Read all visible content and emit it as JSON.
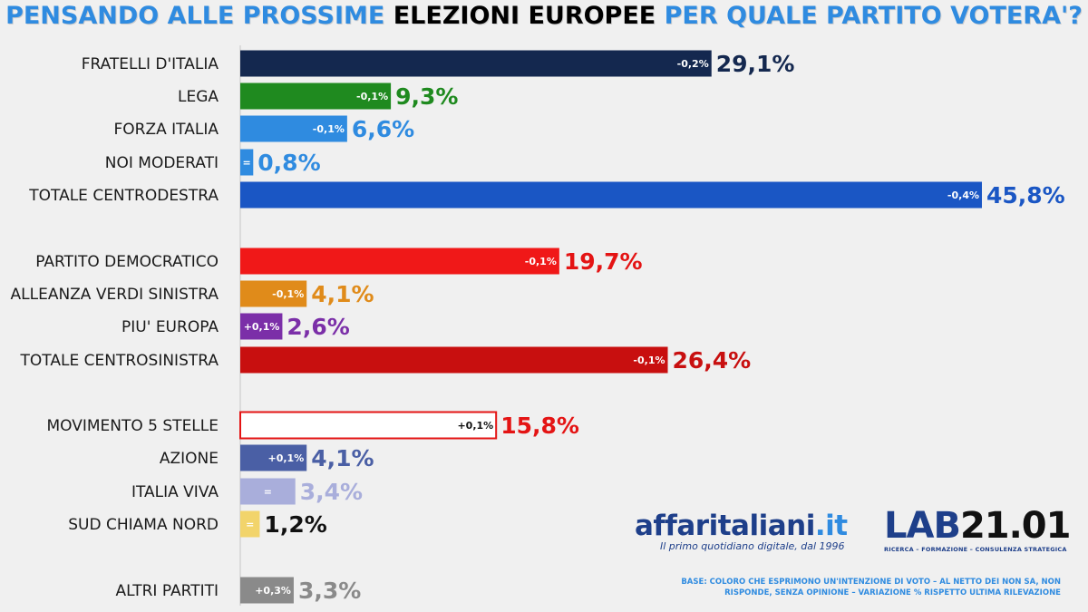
{
  "title": {
    "part1": "PENSANDO ALLE PROSSIME",
    "part2": "ELEZIONI EUROPEE",
    "part3": "PER QUALE PARTITO VOTERA'?"
  },
  "chart_data": {
    "type": "bar",
    "orientation": "horizontal",
    "unit": "%",
    "xlim": [
      0,
      50
    ],
    "grid": false,
    "legend": "none",
    "categories": [
      "FRATELLI D'ITALIA",
      "LEGA",
      "FORZA ITALIA",
      "NOI MODERATI",
      "TOTALE CENTRODESTRA",
      "PARTITO DEMOCRATICO",
      "ALLEANZA VERDI SINISTRA",
      "PIU' EUROPA",
      "TOTALE CENTROSINISTRA",
      "MOVIMENTO 5 STELLE",
      "AZIONE",
      "ITALIA VIVA",
      "SUD CHIAMA NORD",
      "ALTRI PARTITI"
    ],
    "values": [
      29.1,
      9.3,
      6.6,
      0.8,
      45.8,
      19.7,
      4.1,
      2.6,
      26.4,
      15.8,
      4.1,
      3.4,
      1.2,
      3.3
    ],
    "value_labels": [
      "29,1%",
      "9,3%",
      "6,6%",
      "0,8%",
      "45,8%",
      "19,7%",
      "4,1%",
      "2,6%",
      "26,4%",
      "15,8%",
      "4,1%",
      "3,4%",
      "1,2%",
      "3,3%"
    ],
    "variations": [
      "-0,2%",
      "-0,1%",
      "-0,1%",
      "=",
      "-0,4%",
      "-0,1%",
      "-0,1%",
      "+0,1%",
      "-0,1%",
      "+0,1%",
      "+0,1%",
      "=",
      "=",
      "+0,3%"
    ],
    "bar_colors": [
      "#14284f",
      "#1f8a1f",
      "#2f8be0",
      "#2f8be0",
      "#1a56c4",
      "#f01818",
      "#e08b1a",
      "#7b2fa8",
      "#c80f0f",
      "#ffffff",
      "#4a5fa5",
      "#a9aedb",
      "#f2d46b",
      "#8a8a8a"
    ],
    "value_colors": [
      "#14284f",
      "#1f8a1f",
      "#2f8be0",
      "#2f8be0",
      "#1a56c4",
      "#e41414",
      "#e08b1a",
      "#7b2fa8",
      "#c80f0f",
      "#e41414",
      "#4a5fa5",
      "#a9aedb",
      "#111111",
      "#8a8a8a"
    ],
    "bar_outline": [
      null,
      null,
      null,
      null,
      null,
      null,
      null,
      null,
      null,
      "#e41414",
      null,
      null,
      null,
      null
    ]
  },
  "logo": {
    "name_main": "affaritaliani",
    "name_suffix": ".it",
    "tagline": "Il primo quotidiano digitale, dal 1996"
  },
  "lab": {
    "prefix": "LAB",
    "number": "21.01",
    "tagline": "RICERCA – FORMAZIONE – CONSULENZA STRATEGICA"
  },
  "note": "BASE: COLORO CHE ESPRIMONO UN'INTENZIONE DI VOTO – AL NETTO DEI NON SA, NON RISPONDE, SENZA OPINIONE – VARIAZIONE % RISPETTO ULTIMA RILEVAZIONE"
}
